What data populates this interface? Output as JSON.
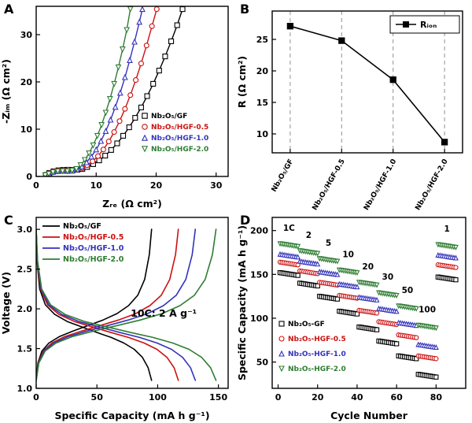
{
  "figure": {
    "background": "#ffffff",
    "panel_labels": [
      "A",
      "B",
      "C",
      "D"
    ]
  },
  "colors": {
    "gf": "#000000",
    "hgf_05": "#cc1111",
    "hgf_10": "#3333bb",
    "hgf_20": "#2e7d32"
  },
  "chart_data": [
    {
      "panel": "A",
      "id": "nyquist",
      "type": "scatter",
      "xlabel": "Zᵣₑ (Ω cm²)",
      "ylabel": "-Zᵢₘ (Ω cm²)",
      "xlim": [
        0,
        32
      ],
      "ylim": [
        0,
        36
      ],
      "xticks": [
        0,
        10,
        20,
        30
      ],
      "yticks": [
        0,
        10,
        20,
        30
      ],
      "legend_position": "bottom-right",
      "series": [
        {
          "label": "Nb₂O₅/GF",
          "color": "#000000",
          "marker": "square",
          "points": [
            [
              1.6,
              0.3
            ],
            [
              2.2,
              0.75
            ],
            [
              2.9,
              1.1
            ],
            [
              3.7,
              1.3
            ],
            [
              4.5,
              1.4
            ],
            [
              5.3,
              1.42
            ],
            [
              6.1,
              1.4
            ],
            [
              6.9,
              1.42
            ],
            [
              7.7,
              1.6
            ],
            [
              8.5,
              2.0
            ],
            [
              9.5,
              2.6
            ],
            [
              10.5,
              3.4
            ],
            [
              11.5,
              4.4
            ],
            [
              12.5,
              5.6
            ],
            [
              13.5,
              7.0
            ],
            [
              14.5,
              8.6
            ],
            [
              15.5,
              10.4
            ],
            [
              16.5,
              12.4
            ],
            [
              17.5,
              14.6
            ],
            [
              18.5,
              17.0
            ],
            [
              19.5,
              19.6
            ],
            [
              20.5,
              22.4
            ],
            [
              21.5,
              25.4
            ],
            [
              22.5,
              28.6
            ],
            [
              23.5,
              32.0
            ],
            [
              24.4,
              35.4
            ]
          ]
        },
        {
          "label": "Nb₂O₅/HGF-0.5",
          "color": "#cc1111",
          "marker": "circle",
          "points": [
            [
              1.6,
              0.3
            ],
            [
              2.2,
              0.7
            ],
            [
              2.9,
              1.05
            ],
            [
              3.7,
              1.25
            ],
            [
              4.5,
              1.35
            ],
            [
              5.3,
              1.38
            ],
            [
              6.1,
              1.38
            ],
            [
              6.9,
              1.45
            ],
            [
              7.7,
              1.8
            ],
            [
              8.5,
              2.4
            ],
            [
              9.4,
              3.2
            ],
            [
              10.3,
              4.3
            ],
            [
              11.2,
              5.7
            ],
            [
              12.1,
              7.4
            ],
            [
              13.0,
              9.4
            ],
            [
              13.9,
              11.7
            ],
            [
              14.8,
              14.3
            ],
            [
              15.7,
              17.2
            ],
            [
              16.6,
              20.4
            ],
            [
              17.5,
              23.9
            ],
            [
              18.4,
              27.7
            ],
            [
              19.3,
              31.8
            ],
            [
              20.1,
              35.4
            ]
          ]
        },
        {
          "label": "Nb₂O₅/HGF-1.0",
          "color": "#3333bb",
          "marker": "tri-up",
          "points": [
            [
              1.5,
              0.25
            ],
            [
              2.1,
              0.6
            ],
            [
              2.8,
              0.95
            ],
            [
              3.6,
              1.12
            ],
            [
              4.4,
              1.18
            ],
            [
              5.2,
              1.15
            ],
            [
              6.0,
              1.2
            ],
            [
              6.8,
              1.5
            ],
            [
              7.6,
              2.1
            ],
            [
              8.4,
              3.0
            ],
            [
              9.2,
              4.2
            ],
            [
              10.0,
              5.7
            ],
            [
              10.8,
              7.5
            ],
            [
              11.6,
              9.6
            ],
            [
              12.4,
              12.0
            ],
            [
              13.2,
              14.7
            ],
            [
              14.0,
              17.7
            ],
            [
              14.8,
              21.0
            ],
            [
              15.6,
              24.6
            ],
            [
              16.4,
              28.5
            ],
            [
              17.2,
              32.7
            ],
            [
              17.7,
              35.4
            ]
          ]
        },
        {
          "label": "Nb₂O₅/HGF-2.0",
          "color": "#2e7d32",
          "marker": "tri-down",
          "points": [
            [
              1.5,
              0.25
            ],
            [
              2.1,
              0.55
            ],
            [
              2.8,
              0.9
            ],
            [
              3.6,
              1.08
            ],
            [
              4.4,
              1.12
            ],
            [
              5.2,
              1.1
            ],
            [
              6.0,
              1.25
            ],
            [
              6.7,
              1.6
            ],
            [
              7.4,
              2.4
            ],
            [
              8.1,
              3.5
            ],
            [
              8.8,
              4.9
            ],
            [
              9.5,
              6.6
            ],
            [
              10.2,
              8.6
            ],
            [
              10.9,
              10.9
            ],
            [
              11.6,
              13.5
            ],
            [
              12.3,
              16.4
            ],
            [
              13.0,
              19.6
            ],
            [
              13.7,
              23.1
            ],
            [
              14.4,
              26.9
            ],
            [
              15.1,
              31.0
            ],
            [
              15.7,
              35.4
            ]
          ]
        }
      ]
    },
    {
      "panel": "B",
      "id": "ion-resistance",
      "type": "line",
      "ylabel": "R (Ω cm²)",
      "legend_label": "Rᵢₒₙ",
      "categories": [
        "Nb₂O₅/GF",
        "Nb₂O₅/HGF-0.5",
        "Nb₂O₅/HGF-1.0",
        "Nb₂O₅/HGF-2.0"
      ],
      "values": [
        27.1,
        24.8,
        18.6,
        8.7
      ],
      "ylim": [
        7,
        29.5
      ],
      "yticks": [
        10,
        15,
        20,
        25
      ],
      "color": "#000000",
      "marker": "square",
      "vgrid": "dashed"
    },
    {
      "panel": "C",
      "id": "voltage-profiles",
      "type": "line",
      "xlabel": "Specific Capacity (mA h g⁻¹)",
      "ylabel": "Voltage (V)",
      "xlim": [
        0,
        158
      ],
      "ylim": [
        1.0,
        3.15
      ],
      "xticks": [
        0,
        50,
        100,
        150
      ],
      "yticks": [
        1.0,
        1.5,
        2.0,
        2.5,
        3.0
      ],
      "ytick_labels": [
        "1.0",
        "1.5",
        "2.0",
        "2.5",
        "3.0"
      ],
      "annotation": {
        "text": "10C: 2 A g⁻¹",
        "x": 105,
        "y": 1.9
      },
      "profile": {
        "discharge_f": [
          0,
          0.008,
          0.03,
          0.08,
          0.16,
          0.27,
          0.4,
          0.53,
          0.65,
          0.76,
          0.85,
          0.92,
          0.97,
          1.0
        ],
        "discharge_v": [
          3.0,
          2.6,
          2.25,
          2.05,
          1.93,
          1.84,
          1.77,
          1.7,
          1.64,
          1.57,
          1.49,
          1.39,
          1.26,
          1.1
        ],
        "charge_f": [
          0,
          0.015,
          0.05,
          0.11,
          0.2,
          0.32,
          0.45,
          0.58,
          0.7,
          0.8,
          0.88,
          0.94,
          0.98,
          1.0
        ],
        "charge_v": [
          1.1,
          1.32,
          1.47,
          1.57,
          1.65,
          1.72,
          1.79,
          1.86,
          1.94,
          2.04,
          2.17,
          2.37,
          2.68,
          3.0
        ]
      },
      "series": [
        {
          "label": "Nb₂O₅/GF",
          "color": "#000000",
          "max_capacity": 95
        },
        {
          "label": "Nb₂O₅/HGF-0.5",
          "color": "#cc1111",
          "max_capacity": 117
        },
        {
          "label": "Nb₂O₅/HGF-1.0",
          "color": "#3333bb",
          "max_capacity": 131
        },
        {
          "label": "Nb₂O₅/HGF-2.0",
          "color": "#2e7d32",
          "max_capacity": 148
        }
      ]
    },
    {
      "panel": "D",
      "id": "rate-capability",
      "type": "scatter",
      "xlabel": "Cycle Number",
      "ylabel": "Specific Capacity (mA h g⁻¹)",
      "xlim": [
        -3,
        95
      ],
      "ylim": [
        20,
        215
      ],
      "xticks": [
        0,
        20,
        40,
        60,
        80
      ],
      "yticks": [
        50,
        100,
        150,
        200
      ],
      "rate_segments": [
        {
          "label": "1C",
          "start": 1,
          "end": 10
        },
        {
          "label": "2",
          "start": 11,
          "end": 20
        },
        {
          "label": "5",
          "start": 21,
          "end": 30
        },
        {
          "label": "10",
          "start": 31,
          "end": 40
        },
        {
          "label": "20",
          "start": 41,
          "end": 50
        },
        {
          "label": "30",
          "start": 51,
          "end": 60
        },
        {
          "label": "50",
          "start": 61,
          "end": 70
        },
        {
          "label": "100",
          "start": 71,
          "end": 80
        },
        {
          "label": "1",
          "start": 81,
          "end": 90
        }
      ],
      "series": [
        {
          "label": "Nb₂O₅-GF",
          "color": "#000000",
          "marker": "square",
          "capacities": [
            152,
            140,
            125,
            108,
            90,
            74,
            57,
            36,
            147
          ]
        },
        {
          "label": "Nb₂O₅-HGF-0.5",
          "color": "#cc1111",
          "marker": "circle",
          "capacities": [
            164,
            154,
            141,
            126,
            109,
            96,
            81,
            57,
            161
          ]
        },
        {
          "label": "Nb₂O₅-HGF-1.0",
          "color": "#3333bb",
          "marker": "tri-up",
          "capacities": [
            173,
            165,
            153,
            139,
            124,
            111,
            95,
            70,
            172
          ]
        },
        {
          "label": "Nb₂O₅-HGF-2.0",
          "color": "#2e7d32",
          "marker": "tri-down",
          "capacities": [
            185,
            177,
            168,
            155,
            141,
            129,
            114,
            92,
            184
          ]
        }
      ]
    }
  ]
}
